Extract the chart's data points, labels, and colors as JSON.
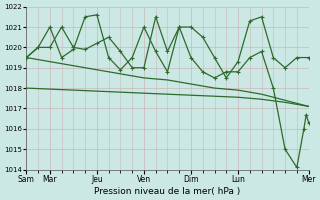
{
  "background_color": "#cce8e4",
  "grid_color": "#c8b8b8",
  "line_color": "#2d6b2d",
  "ylabel_min": 1014,
  "ylabel_max": 1022,
  "xlabel": "Pression niveau de la mer( hPa )",
  "x_labels": [
    "Sam",
    "Mar",
    "Jeu",
    "Ven",
    "Dim",
    "Lun",
    "Mer"
  ],
  "x_ticks_pos": [
    0,
    0.5,
    1.5,
    2.5,
    3.5,
    4.5,
    6.0
  ],
  "series1_x": [
    0.0,
    0.25,
    0.5,
    0.75,
    1.0,
    1.25,
    1.5,
    1.75,
    2.0,
    2.25,
    2.5,
    2.75,
    3.0,
    3.25,
    3.5,
    3.75,
    4.0,
    4.25,
    4.5,
    4.75,
    5.0,
    5.25,
    5.5,
    5.75,
    6.0
  ],
  "series1": [
    1019.5,
    1020.0,
    1020.0,
    1021.0,
    1020.0,
    1019.9,
    1020.2,
    1020.5,
    1019.8,
    1019.0,
    1019.0,
    1021.5,
    1019.8,
    1021.0,
    1021.0,
    1020.5,
    1019.5,
    1018.5,
    1019.3,
    1021.3,
    1021.5,
    1019.5,
    1019.0,
    1019.5,
    1019.5
  ],
  "series2_x": [
    0.0,
    0.25,
    0.5,
    0.75,
    1.0,
    1.25,
    1.5,
    1.75,
    2.0,
    2.25,
    2.5,
    2.75,
    3.0,
    3.25,
    3.5,
    3.75,
    4.0,
    4.25,
    4.5,
    4.75,
    5.0,
    5.25,
    5.5,
    5.75,
    5.9,
    5.95,
    6.0
  ],
  "series2": [
    1019.5,
    1020.0,
    1021.0,
    1019.5,
    1019.9,
    1021.5,
    1021.6,
    1019.5,
    1018.9,
    1019.5,
    1021.0,
    1019.8,
    1018.8,
    1021.0,
    1019.5,
    1018.8,
    1018.5,
    1018.8,
    1018.8,
    1019.5,
    1019.8,
    1018.0,
    1015.0,
    1014.1,
    1016.0,
    1016.7,
    1016.3
  ],
  "series3_x": [
    0.0,
    0.5,
    1.0,
    1.5,
    2.0,
    2.5,
    3.0,
    3.5,
    4.0,
    4.5,
    5.0,
    5.5,
    6.0
  ],
  "series3": [
    1019.5,
    1019.3,
    1019.1,
    1018.9,
    1018.7,
    1018.5,
    1018.4,
    1018.2,
    1018.0,
    1017.9,
    1017.7,
    1017.4,
    1017.1
  ],
  "series4_x": [
    0.0,
    0.5,
    1.0,
    1.5,
    2.0,
    2.5,
    3.0,
    3.5,
    4.0,
    4.5,
    5.0,
    5.5,
    6.0
  ],
  "series4": [
    1018.0,
    1017.95,
    1017.9,
    1017.85,
    1017.8,
    1017.75,
    1017.7,
    1017.65,
    1017.6,
    1017.55,
    1017.45,
    1017.3,
    1017.1
  ]
}
